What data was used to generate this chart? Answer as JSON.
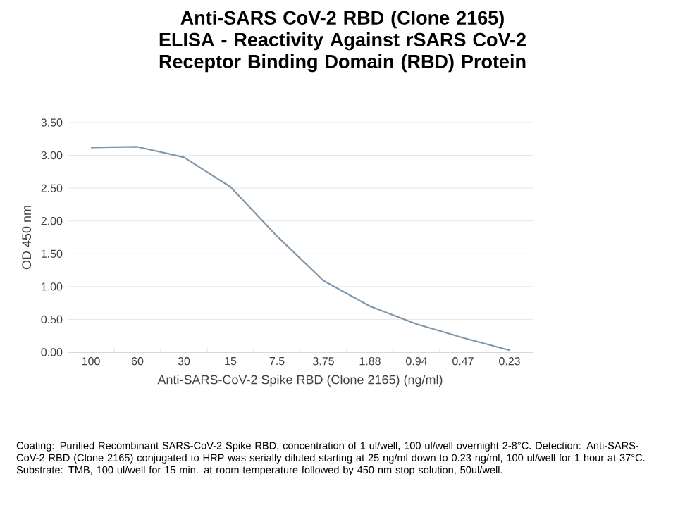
{
  "chart_data": {
    "type": "line",
    "title": "Anti-SARS CoV-2 RBD (Clone 2165) ELISA - Reactivity Against rSARS CoV-2 Receptor Binding Domain (RBD) Protein",
    "xlabel": "Anti-SARS-CoV-2 Spike RBD (Clone 2165) (ng/ml)",
    "ylabel": "OD 450 nm",
    "categories": [
      "100",
      "60",
      "30",
      "15",
      "7.5",
      "3.75",
      "1.88",
      "0.94",
      "0.47",
      "0.23"
    ],
    "series": [
      {
        "color": "#7f96aa",
        "values": [
          3.12,
          3.13,
          2.97,
          2.52,
          1.77,
          1.09,
          0.7,
          0.43,
          0.22,
          0.03
        ]
      }
    ],
    "ylim": [
      0,
      3.5
    ],
    "yticks": [
      {
        "value": 0,
        "label": "0.00"
      },
      {
        "value": 0.5,
        "label": "0.50"
      },
      {
        "value": 1,
        "label": "1.00"
      },
      {
        "value": 1.5,
        "label": "1.50"
      },
      {
        "value": 2,
        "label": "2.00"
      },
      {
        "value": 2.5,
        "label": "2.50"
      },
      {
        "value": 3,
        "label": "3.00"
      },
      {
        "value": 3.5,
        "label": "3.50"
      }
    ],
    "grid": "y",
    "marker": "none",
    "line_style": "solid",
    "annotations": [
      "Coating: Purified Recombinant SARS-CoV-2 Spike RBD, concentration of 1 ul/well, 100 ul/well overnight 2-8°C. Detection: Anti-SARS-CoV-2 RBD (Clone 2165) conjugated to HRP was serially diluted starting at 25 ng/ml down to 0.23 ng/ml, 100 ul/well for 1 hour at 37°C. Substrate: TMB, 100 ul/well for 15 min. at room temperature followed by 450 nm stop solution, 50ul/well."
    ]
  }
}
